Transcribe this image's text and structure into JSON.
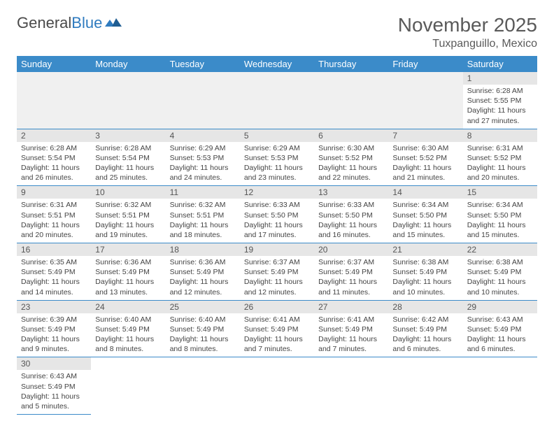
{
  "logo": {
    "text1": "General",
    "text2": "Blue"
  },
  "title": "November 2025",
  "location": "Tuxpanguillo, Mexico",
  "colors": {
    "header_bg": "#3b8bc9",
    "header_text": "#ffffff",
    "daynum_bg": "#e6e6e6",
    "border": "#3b8bc9",
    "blank_bg": "#f0f0f0",
    "page_bg": "#ffffff",
    "text": "#444444"
  },
  "weekdays": [
    "Sunday",
    "Monday",
    "Tuesday",
    "Wednesday",
    "Thursday",
    "Friday",
    "Saturday"
  ],
  "days": {
    "1": {
      "sunrise": "6:28 AM",
      "sunset": "5:55 PM",
      "daylight": "11 hours and 27 minutes."
    },
    "2": {
      "sunrise": "6:28 AM",
      "sunset": "5:54 PM",
      "daylight": "11 hours and 26 minutes."
    },
    "3": {
      "sunrise": "6:28 AM",
      "sunset": "5:54 PM",
      "daylight": "11 hours and 25 minutes."
    },
    "4": {
      "sunrise": "6:29 AM",
      "sunset": "5:53 PM",
      "daylight": "11 hours and 24 minutes."
    },
    "5": {
      "sunrise": "6:29 AM",
      "sunset": "5:53 PM",
      "daylight": "11 hours and 23 minutes."
    },
    "6": {
      "sunrise": "6:30 AM",
      "sunset": "5:52 PM",
      "daylight": "11 hours and 22 minutes."
    },
    "7": {
      "sunrise": "6:30 AM",
      "sunset": "5:52 PM",
      "daylight": "11 hours and 21 minutes."
    },
    "8": {
      "sunrise": "6:31 AM",
      "sunset": "5:52 PM",
      "daylight": "11 hours and 20 minutes."
    },
    "9": {
      "sunrise": "6:31 AM",
      "sunset": "5:51 PM",
      "daylight": "11 hours and 20 minutes."
    },
    "10": {
      "sunrise": "6:32 AM",
      "sunset": "5:51 PM",
      "daylight": "11 hours and 19 minutes."
    },
    "11": {
      "sunrise": "6:32 AM",
      "sunset": "5:51 PM",
      "daylight": "11 hours and 18 minutes."
    },
    "12": {
      "sunrise": "6:33 AM",
      "sunset": "5:50 PM",
      "daylight": "11 hours and 17 minutes."
    },
    "13": {
      "sunrise": "6:33 AM",
      "sunset": "5:50 PM",
      "daylight": "11 hours and 16 minutes."
    },
    "14": {
      "sunrise": "6:34 AM",
      "sunset": "5:50 PM",
      "daylight": "11 hours and 15 minutes."
    },
    "15": {
      "sunrise": "6:34 AM",
      "sunset": "5:50 PM",
      "daylight": "11 hours and 15 minutes."
    },
    "16": {
      "sunrise": "6:35 AM",
      "sunset": "5:49 PM",
      "daylight": "11 hours and 14 minutes."
    },
    "17": {
      "sunrise": "6:36 AM",
      "sunset": "5:49 PM",
      "daylight": "11 hours and 13 minutes."
    },
    "18": {
      "sunrise": "6:36 AM",
      "sunset": "5:49 PM",
      "daylight": "11 hours and 12 minutes."
    },
    "19": {
      "sunrise": "6:37 AM",
      "sunset": "5:49 PM",
      "daylight": "11 hours and 12 minutes."
    },
    "20": {
      "sunrise": "6:37 AM",
      "sunset": "5:49 PM",
      "daylight": "11 hours and 11 minutes."
    },
    "21": {
      "sunrise": "6:38 AM",
      "sunset": "5:49 PM",
      "daylight": "11 hours and 10 minutes."
    },
    "22": {
      "sunrise": "6:38 AM",
      "sunset": "5:49 PM",
      "daylight": "11 hours and 10 minutes."
    },
    "23": {
      "sunrise": "6:39 AM",
      "sunset": "5:49 PM",
      "daylight": "11 hours and 9 minutes."
    },
    "24": {
      "sunrise": "6:40 AM",
      "sunset": "5:49 PM",
      "daylight": "11 hours and 8 minutes."
    },
    "25": {
      "sunrise": "6:40 AM",
      "sunset": "5:49 PM",
      "daylight": "11 hours and 8 minutes."
    },
    "26": {
      "sunrise": "6:41 AM",
      "sunset": "5:49 PM",
      "daylight": "11 hours and 7 minutes."
    },
    "27": {
      "sunrise": "6:41 AM",
      "sunset": "5:49 PM",
      "daylight": "11 hours and 7 minutes."
    },
    "28": {
      "sunrise": "6:42 AM",
      "sunset": "5:49 PM",
      "daylight": "11 hours and 6 minutes."
    },
    "29": {
      "sunrise": "6:43 AM",
      "sunset": "5:49 PM",
      "daylight": "11 hours and 6 minutes."
    },
    "30": {
      "sunrise": "6:43 AM",
      "sunset": "5:49 PM",
      "daylight": "11 hours and 5 minutes."
    }
  },
  "labels": {
    "sunrise": "Sunrise:",
    "sunset": "Sunset:",
    "daylight": "Daylight:"
  },
  "layout": {
    "first_weekday_index": 6,
    "num_days": 30
  }
}
